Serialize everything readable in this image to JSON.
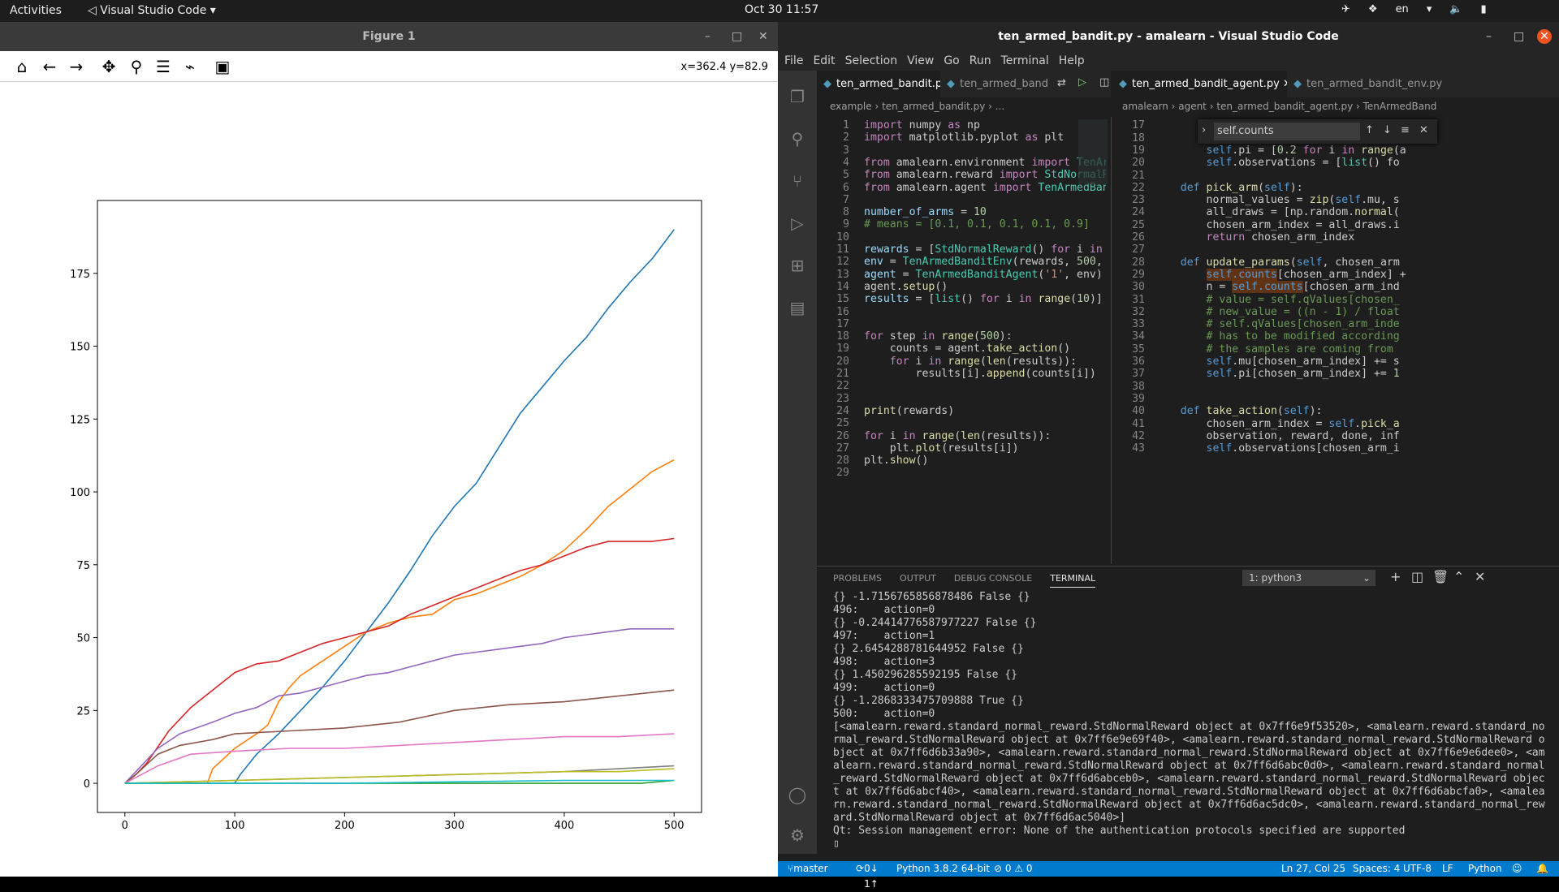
{
  "topbar": {
    "activities": "Activities",
    "app": "Visual Studio Code",
    "clock": "Oct 30  11:57",
    "lang": "en"
  },
  "figure": {
    "title": "Figure 1",
    "coords": "x=362.4 y=82.9"
  },
  "chart_data": {
    "type": "line",
    "xlim": [
      0,
      500
    ],
    "ylim": [
      0,
      190
    ],
    "xticks": [
      0,
      100,
      200,
      300,
      400,
      500
    ],
    "yticks": [
      0,
      25,
      50,
      75,
      100,
      125,
      150,
      175
    ],
    "series": [
      {
        "color": "#1f77b4",
        "x": [
          0,
          100,
          105,
          120,
          140,
          160,
          180,
          200,
          220,
          240,
          260,
          280,
          300,
          320,
          340,
          360,
          380,
          400,
          420,
          440,
          460,
          480,
          500
        ],
        "y": [
          0,
          0,
          3,
          10,
          17,
          25,
          33,
          42,
          52,
          62,
          73,
          85,
          95,
          103,
          115,
          127,
          136,
          145,
          153,
          163,
          172,
          180,
          190
        ]
      },
      {
        "color": "#ff7f0e",
        "x": [
          0,
          75,
          80,
          100,
          120,
          130,
          140,
          150,
          160,
          180,
          200,
          220,
          240,
          260,
          280,
          300,
          320,
          340,
          360,
          380,
          400,
          420,
          440,
          460,
          480,
          500
        ],
        "y": [
          0,
          0,
          5,
          12,
          17,
          20,
          28,
          33,
          37,
          42,
          47,
          52,
          55,
          57,
          58,
          63,
          65,
          68,
          71,
          75,
          80,
          87,
          95,
          101,
          107,
          111
        ]
      },
      {
        "color": "#d62728",
        "x": [
          0,
          10,
          20,
          40,
          60,
          80,
          100,
          120,
          140,
          160,
          180,
          200,
          220,
          240,
          260,
          280,
          300,
          320,
          340,
          360,
          380,
          400,
          420,
          440,
          460,
          480,
          500
        ],
        "y": [
          0,
          3,
          7,
          18,
          26,
          32,
          38,
          41,
          42,
          45,
          48,
          50,
          52,
          54,
          58,
          61,
          64,
          67,
          70,
          73,
          75,
          78,
          81,
          83,
          83,
          83,
          84
        ]
      },
      {
        "color": "#9467bd",
        "x": [
          0,
          10,
          30,
          50,
          80,
          100,
          120,
          140,
          160,
          180,
          200,
          220,
          240,
          260,
          280,
          300,
          320,
          340,
          360,
          380,
          400,
          420,
          440,
          460,
          480,
          500
        ],
        "y": [
          0,
          4,
          12,
          17,
          21,
          24,
          26,
          30,
          31,
          33,
          35,
          37,
          38,
          40,
          42,
          44,
          45,
          46,
          47,
          48,
          50,
          51,
          52,
          53,
          53,
          53
        ]
      },
      {
        "color": "#8c564b",
        "x": [
          0,
          10,
          30,
          50,
          80,
          100,
          150,
          200,
          250,
          300,
          350,
          400,
          450,
          500
        ],
        "y": [
          0,
          3,
          10,
          13,
          15,
          17,
          18,
          19,
          21,
          25,
          27,
          28,
          30,
          32
        ]
      },
      {
        "color": "#e377c2",
        "x": [
          0,
          10,
          30,
          60,
          100,
          150,
          200,
          250,
          300,
          350,
          400,
          450,
          500
        ],
        "y": [
          0,
          2,
          6,
          10,
          11,
          12,
          12,
          13,
          14,
          15,
          16,
          16,
          17
        ]
      },
      {
        "color": "#7f7f7f",
        "x": [
          0,
          100,
          200,
          300,
          400,
          450,
          500
        ],
        "y": [
          0,
          1,
          2,
          3,
          4,
          5,
          6
        ]
      },
      {
        "color": "#bcbd22",
        "x": [
          0,
          100,
          200,
          300,
          400,
          450,
          500
        ],
        "y": [
          0,
          1,
          2,
          3,
          4,
          4,
          5
        ]
      },
      {
        "color": "#2ca02c",
        "x": [
          0,
          200,
          400,
          470,
          500
        ],
        "y": [
          0,
          0,
          0,
          0,
          1
        ]
      },
      {
        "color": "#17becf",
        "x": [
          0,
          200,
          400,
          500
        ],
        "y": [
          0,
          0,
          1,
          1
        ]
      }
    ]
  },
  "vscode": {
    "title": "ten_armed_bandit.py - amalearn - Visual Studio Code",
    "menu": [
      "File",
      "Edit",
      "Selection",
      "View",
      "Go",
      "Run",
      "Terminal",
      "Help"
    ],
    "tabs_left": [
      "ten_armed_bandit.py",
      "ten_armed_band"
    ],
    "tabs_right": [
      "ten_armed_bandit_agent.py",
      "ten_armed_bandit_env.py"
    ],
    "crumb_left": "example  ›  ten_armed_bandit.py  › ...",
    "crumb_right": "amalearn › agent › ten_armed_bandit_agent.py › TenArmedBand",
    "find_text": "self.counts",
    "panel_tabs": [
      "PROBLEMS",
      "OUTPUT",
      "DEBUG CONSOLE",
      "TERMINAL"
    ],
    "terminal_select": "1: python3",
    "terminal": "{} -1.7156765856878486 False {}\n496:    action=0\n{} -0.24414776587977227 False {}\n497:    action=1\n{} 2.6454288781644952 False {}\n498:    action=3\n{} 1.450296285592195 False {}\n499:    action=0\n{} -1.2868333475709888 True {}\n500:    action=0\n[<amalearn.reward.standard_normal_reward.StdNormalReward object at 0x7ff6e9f53520>, <amalearn.reward.standard_normal_reward.StdNormalReward object at 0x7ff6e9e69f40>, <amalearn.reward.standard_normal_reward.StdNormalReward object at 0x7ff6d6b33a90>, <amalearn.reward.standard_normal_reward.StdNormalReward object at 0x7ff6e9e6dee0>, <amalearn.reward.standard_normal_reward.StdNormalReward object at 0x7ff6d6abc0d0>, <amalearn.reward.standard_normal_reward.StdNormalReward object at 0x7ff6d6abceb0>, <amalearn.reward.standard_normal_reward.StdNormalReward object at 0x7ff6d6abcf40>, <amalearn.reward.standard_normal_reward.StdNormalReward object at 0x7ff6d6abcfa0>, <amalearn.reward.standard_normal_reward.StdNormalReward object at 0x7ff6d6ac5dc0>, <amalearn.reward.standard_normal_reward.StdNormalReward object at 0x7ff6d6ac5040>]\nQt: Session management error: None of the authentication protocols specified are supported\n▯",
    "status": {
      "branch": "master",
      "sync": "0↓ 1↑",
      "python": "Python 3.8.2 64-bit",
      "problems": "⊘ 0 ⚠ 0",
      "pos": "Ln 27, Col 25",
      "spaces": "Spaces: 4",
      "enc": "UTF-8",
      "eol": "LF",
      "lang": "Python"
    }
  }
}
